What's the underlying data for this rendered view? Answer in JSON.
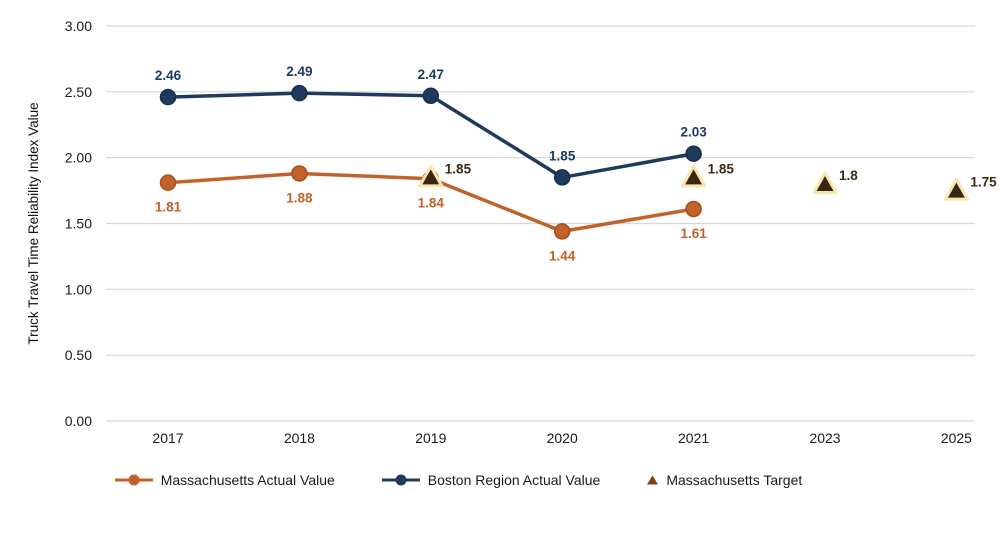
{
  "chart_data": {
    "type": "line",
    "title": "",
    "xlabel": "",
    "ylabel": "Truck Travel Time Reliability Index Value",
    "categories": [
      "2017",
      "2018",
      "2019",
      "2020",
      "2021",
      "2023",
      "2025"
    ],
    "y_ticks": [
      "3.00",
      "2.50",
      "2.00",
      "1.50",
      "1.00",
      "0.50",
      "0.00"
    ],
    "ylim": [
      0,
      3
    ],
    "grid": "horizontal",
    "gridline_color": "#d7d7d7",
    "axis_text_color": "#1a1a1a",
    "legend_position": "bottom",
    "series": [
      {
        "name": "Massachusetts Actual Value",
        "slug": "massachusetts-actual-value",
        "draw": "line",
        "marker": "circle",
        "color": "#c2622b",
        "marker_stroke": "#a34f1d",
        "x": [
          "2017",
          "2018",
          "2019",
          "2020",
          "2021"
        ],
        "values": [
          1.81,
          1.88,
          1.84,
          1.44,
          1.61
        ],
        "labels": [
          "1.81",
          "1.88",
          "1.84",
          "1.44",
          "1.61"
        ],
        "label_position": "below",
        "label_color": "#c2612a"
      },
      {
        "name": "Boston Region Actual Value",
        "slug": "boston-region-actual-value",
        "draw": "line",
        "marker": "circle",
        "color": "#1e3a5c",
        "marker_stroke": "#152e4d",
        "x": [
          "2017",
          "2018",
          "2019",
          "2020",
          "2021"
        ],
        "values": [
          2.46,
          2.49,
          2.47,
          1.85,
          2.03
        ],
        "labels": [
          "2.46",
          "2.49",
          "2.47",
          "1.85",
          "2.03"
        ],
        "label_position": "above",
        "label_color": "#1b3a5f"
      },
      {
        "name": "Massachusetts Target",
        "slug": "massachusetts-target",
        "draw": "scatter",
        "marker": "triangle",
        "color": "#3a2413",
        "marker_stroke": "#f9e5ae",
        "x": [
          "2019",
          "2021",
          "2023",
          "2025"
        ],
        "values": [
          1.85,
          1.85,
          1.8,
          1.75
        ],
        "labels": [
          "1.85",
          "1.85",
          "1.8",
          "1.75"
        ],
        "label_position": "right",
        "label_color": "#3b2a14"
      }
    ]
  },
  "legend": {
    "items": [
      {
        "label": "Massachusetts Actual Value",
        "marker": "line-circle",
        "color": "#c2622b"
      },
      {
        "label": "Boston Region Actual Value",
        "marker": "line-circle",
        "color": "#1e3a5c"
      },
      {
        "label": "Massachusetts Target",
        "marker": "triangle",
        "color": "#7d3f13"
      }
    ]
  }
}
